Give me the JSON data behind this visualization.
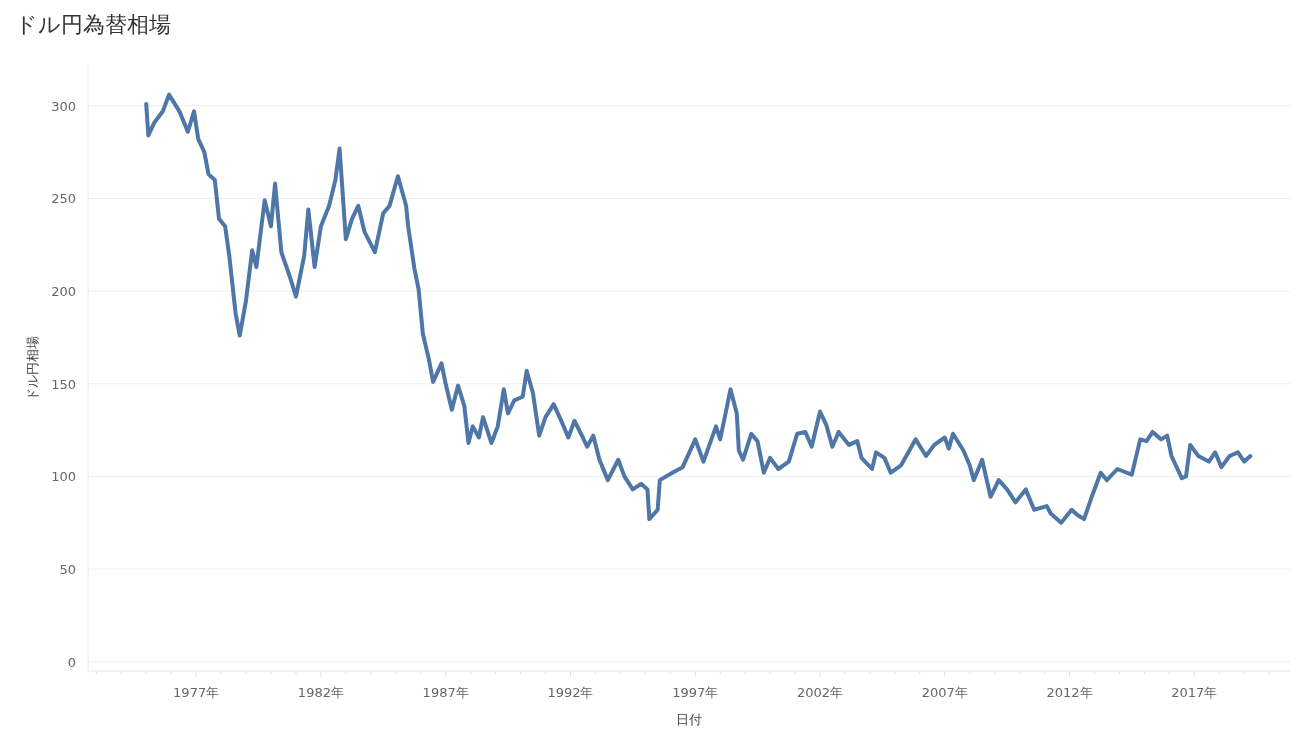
{
  "chart_data": {
    "type": "line",
    "title": "ドル円為替相場",
    "xlabel": "日付",
    "ylabel": "ドル円相場",
    "x": [
      "1975-01",
      "1975-02",
      "1975-05",
      "1975-09",
      "1975-12",
      "1976-05",
      "1976-09",
      "1976-12",
      "1977-02",
      "1977-05",
      "1977-07",
      "1977-10",
      "1977-12",
      "1978-03",
      "1978-05",
      "1978-08",
      "1978-10",
      "1979-01",
      "1979-04",
      "1979-06",
      "1979-10",
      "1980-01",
      "1980-03",
      "1980-06",
      "1980-10",
      "1981-01",
      "1981-05",
      "1981-07",
      "1981-10",
      "1982-01",
      "1982-05",
      "1982-08",
      "1982-10",
      "1983-01",
      "1983-04",
      "1983-07",
      "1983-10",
      "1984-03",
      "1984-07",
      "1984-10",
      "1985-02",
      "1985-06",
      "1985-07",
      "1985-10",
      "1985-12",
      "1986-02",
      "1986-05",
      "1986-07",
      "1986-11",
      "1987-01",
      "1987-04",
      "1987-07",
      "1987-10",
      "1987-12",
      "1988-02",
      "1988-05",
      "1988-07",
      "1988-11",
      "1989-02",
      "1989-05",
      "1989-07",
      "1989-10",
      "1990-02",
      "1990-04",
      "1990-07",
      "1990-10",
      "1991-01",
      "1991-05",
      "1991-09",
      "1991-12",
      "1992-03",
      "1992-07",
      "1992-09",
      "1992-12",
      "1993-03",
      "1993-07",
      "1993-12",
      "1994-03",
      "1994-07",
      "1994-11",
      "1995-02",
      "1995-03",
      "1995-07",
      "1995-08",
      "1996-02",
      "1996-07",
      "1997-01",
      "1997-05",
      "1997-11",
      "1998-01",
      "1998-06",
      "1998-09",
      "1998-10",
      "1998-12",
      "1999-04",
      "1999-07",
      "1999-10",
      "2000-01",
      "2000-05",
      "2000-10",
      "2001-02",
      "2001-06",
      "2001-09",
      "2002-01",
      "2002-04",
      "2002-07",
      "2002-10",
      "2003-03",
      "2003-07",
      "2003-09",
      "2004-02",
      "2004-04",
      "2004-08",
      "2004-11",
      "2005-04",
      "2005-07",
      "2005-11",
      "2006-04",
      "2006-08",
      "2007-01",
      "2007-03",
      "2007-05",
      "2007-10",
      "2008-01",
      "2008-03",
      "2008-07",
      "2008-11",
      "2009-03",
      "2009-07",
      "2009-11",
      "2010-04",
      "2010-08",
      "2011-02",
      "2011-04",
      "2011-09",
      "2012-02",
      "2012-05",
      "2012-08",
      "2012-12",
      "2013-04",
      "2013-07",
      "2013-12",
      "2014-07",
      "2014-11",
      "2015-02",
      "2015-05",
      "2015-09",
      "2015-12",
      "2016-02",
      "2016-07",
      "2016-09",
      "2016-11",
      "2017-03",
      "2017-08",
      "2017-11",
      "2018-02",
      "2018-06",
      "2018-10",
      "2019-01",
      "2019-04"
    ],
    "series": [
      {
        "color": "#4e76a6",
        "values": [
          301,
          284,
          291,
          297,
          306,
          297,
          286,
          297,
          282,
          275,
          263,
          260,
          239,
          235,
          219,
          188,
          176,
          195,
          222,
          213,
          249,
          235,
          258,
          221,
          208,
          197,
          219,
          244,
          213,
          235,
          246,
          260,
          277,
          228,
          239,
          246,
          232,
          221,
          242,
          246,
          262,
          246,
          235,
          212,
          201,
          177,
          163,
          151,
          161,
          150,
          136,
          149,
          138,
          118,
          127,
          121,
          132,
          118,
          127,
          147,
          134,
          141,
          143,
          157,
          145,
          122,
          132,
          139,
          129,
          121,
          130,
          121,
          116,
          122,
          109,
          98,
          109,
          100,
          93,
          96,
          93,
          77,
          82,
          98,
          102,
          105,
          120,
          108,
          127,
          120,
          147,
          134,
          114,
          109,
          123,
          119,
          102,
          110,
          104,
          108,
          123,
          124,
          116,
          135,
          128,
          116,
          124,
          117,
          119,
          110,
          104,
          113,
          110,
          102,
          106,
          112,
          120,
          111,
          117,
          121,
          115,
          123,
          114,
          106,
          98,
          109,
          89,
          98,
          93,
          86,
          93,
          82,
          84,
          80,
          75,
          82,
          79,
          77,
          90,
          102,
          98,
          104,
          101,
          120,
          119,
          124,
          120,
          122,
          111,
          99,
          100,
          117,
          111,
          108,
          113,
          105,
          111,
          113,
          108,
          111
        ]
      }
    ],
    "xlim": [
      "1972-09",
      "2020-11"
    ],
    "xticks": [
      {
        "value": "1973",
        "label": null
      },
      {
        "value": "1974",
        "label": null
      },
      {
        "value": "1975",
        "label": null
      },
      {
        "value": "1976",
        "label": null
      },
      {
        "value": "1977",
        "label": "1977年"
      },
      {
        "value": "1978",
        "label": null
      },
      {
        "value": "1979",
        "label": null
      },
      {
        "value": "1980",
        "label": null
      },
      {
        "value": "1981",
        "label": null
      },
      {
        "value": "1982",
        "label": "1982年"
      },
      {
        "value": "1983",
        "label": null
      },
      {
        "value": "1984",
        "label": null
      },
      {
        "value": "1985",
        "label": null
      },
      {
        "value": "1986",
        "label": null
      },
      {
        "value": "1987",
        "label": "1987年"
      },
      {
        "value": "1988",
        "label": null
      },
      {
        "value": "1989",
        "label": null
      },
      {
        "value": "1990",
        "label": null
      },
      {
        "value": "1991",
        "label": null
      },
      {
        "value": "1992",
        "label": "1992年"
      },
      {
        "value": "1993",
        "label": null
      },
      {
        "value": "1994",
        "label": null
      },
      {
        "value": "1995",
        "label": null
      },
      {
        "value": "1996",
        "label": null
      },
      {
        "value": "1997",
        "label": "1997年"
      },
      {
        "value": "1998",
        "label": null
      },
      {
        "value": "1999",
        "label": null
      },
      {
        "value": "2000",
        "label": null
      },
      {
        "value": "2001",
        "label": null
      },
      {
        "value": "2002",
        "label": "2002年"
      },
      {
        "value": "2003",
        "label": null
      },
      {
        "value": "2004",
        "label": null
      },
      {
        "value": "2005",
        "label": null
      },
      {
        "value": "2006",
        "label": null
      },
      {
        "value": "2007",
        "label": "2007年"
      },
      {
        "value": "2008",
        "label": null
      },
      {
        "value": "2009",
        "label": null
      },
      {
        "value": "2010",
        "label": null
      },
      {
        "value": "2011",
        "label": null
      },
      {
        "value": "2012",
        "label": "2012年"
      },
      {
        "value": "2013",
        "label": null
      },
      {
        "value": "2014",
        "label": null
      },
      {
        "value": "2015",
        "label": null
      },
      {
        "value": "2016",
        "label": null
      },
      {
        "value": "2017",
        "label": "2017年"
      },
      {
        "value": "2018",
        "label": null
      },
      {
        "value": "2019",
        "label": null
      },
      {
        "value": "2020",
        "label": null
      }
    ],
    "ylim": [
      -5,
      322
    ],
    "yticks": [
      0,
      50,
      100,
      150,
      200,
      250,
      300
    ],
    "grid": "y",
    "line_style": "solid"
  }
}
